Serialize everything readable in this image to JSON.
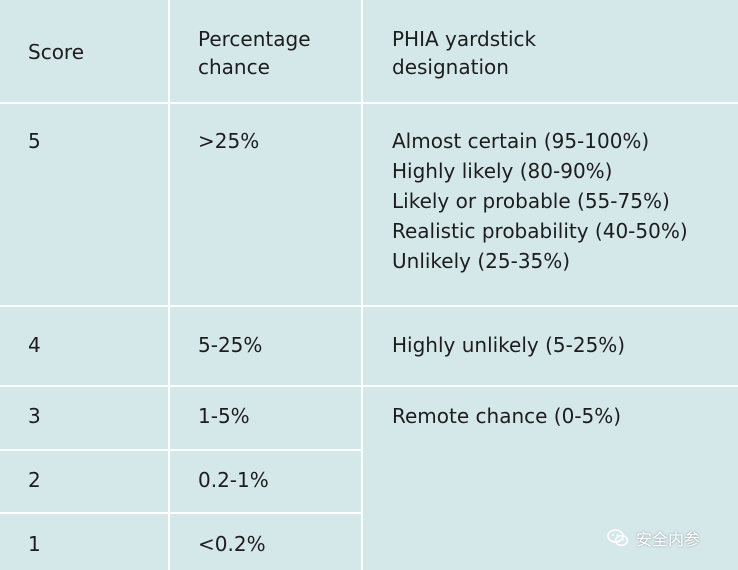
{
  "table": {
    "headers": {
      "score": "Score",
      "percentage": "Percentage\nchance",
      "phia": "PHIA yardstick\ndesignation"
    },
    "rows": [
      {
        "score": "5",
        "percentage": ">25%",
        "phia": "Almost certain (95-100%)\nHighly likely (80-90%)\nLikely or probable (55-75%)\nRealistic probability (40-50%)\nUnlikely (25-35%)"
      },
      {
        "score": "4",
        "percentage": "5-25%",
        "phia": "Highly unlikely (5-25%)"
      },
      {
        "score": "3",
        "percentage": "1-5%",
        "phia": "Remote chance (0-5%)"
      },
      {
        "score": "2",
        "percentage": "0.2-1%"
      },
      {
        "score": "1",
        "percentage": "<0.2%"
      }
    ]
  },
  "watermark": {
    "icon": "wechat-icon",
    "text": "安全内参"
  },
  "colors": {
    "background": "#d4e7e9",
    "grid": "#ffffff",
    "text": "#1d1d1d"
  }
}
